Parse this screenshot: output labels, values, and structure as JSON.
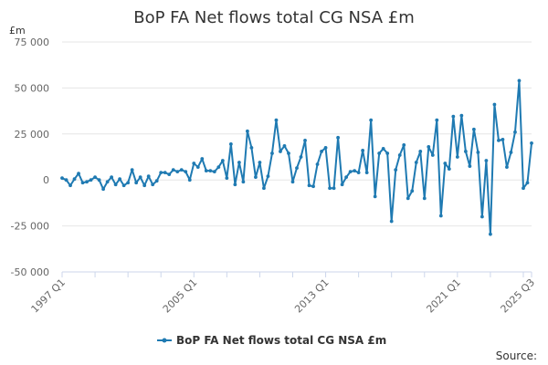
{
  "chart_data": {
    "type": "line",
    "title": "BoP FA Net flows total CG NSA £m",
    "unit_label": "£m",
    "xlabel": "",
    "ylabel": "",
    "ylim": [
      -50000,
      75000
    ],
    "y_ticks": [
      "75 000",
      "50 000",
      "25 000",
      "0",
      "-25 000",
      "-50 000"
    ],
    "y_tick_values": [
      75000,
      50000,
      25000,
      0,
      -25000,
      -50000
    ],
    "x_tick_labels": [
      "1997 Q1",
      "2005 Q1",
      "2013 Q1",
      "2021 Q1",
      "2025 Q3"
    ],
    "x_tick_indices": [
      0,
      32,
      64,
      96,
      114
    ],
    "grid": true,
    "legend_position": "bottom",
    "source_label": "Source:",
    "color": "#1f7ab2",
    "series": [
      {
        "name": "BoP FA Net flows total CG NSA £m",
        "values": [
          1000,
          0,
          -3000,
          500,
          3500,
          -1500,
          -1000,
          0,
          1500,
          0,
          -5000,
          -1000,
          1500,
          -2500,
          500,
          -3000,
          -1500,
          5500,
          -1500,
          1500,
          -3000,
          2000,
          -2500,
          -500,
          4000,
          4000,
          3000,
          5500,
          4500,
          5500,
          4500,
          0,
          9000,
          7000,
          11500,
          5000,
          5000,
          4500,
          7000,
          10500,
          1000,
          19500,
          -2500,
          9500,
          -1000,
          26500,
          17500,
          1500,
          9500,
          -4500,
          2000,
          14500,
          32500,
          15500,
          18500,
          14500,
          -1000,
          6500,
          12500,
          21500,
          -3000,
          -3500,
          8500,
          15500,
          17500,
          -4500,
          -4500,
          23000,
          -2500,
          1500,
          4500,
          5000,
          4000,
          16000,
          4000,
          32500,
          -9000,
          14500,
          17000,
          14500,
          -22500,
          5500,
          13500,
          19000,
          -10000,
          -6000,
          9500,
          15500,
          -10000,
          18000,
          13500,
          32500,
          -19500,
          9000,
          6000,
          34500,
          12500,
          35000,
          15500,
          7500,
          27500,
          15000,
          -20000,
          10500,
          -29500,
          41000,
          21500,
          22000,
          7000,
          15000,
          26000,
          54000,
          -4500,
          -1500,
          20000
        ]
      }
    ]
  }
}
